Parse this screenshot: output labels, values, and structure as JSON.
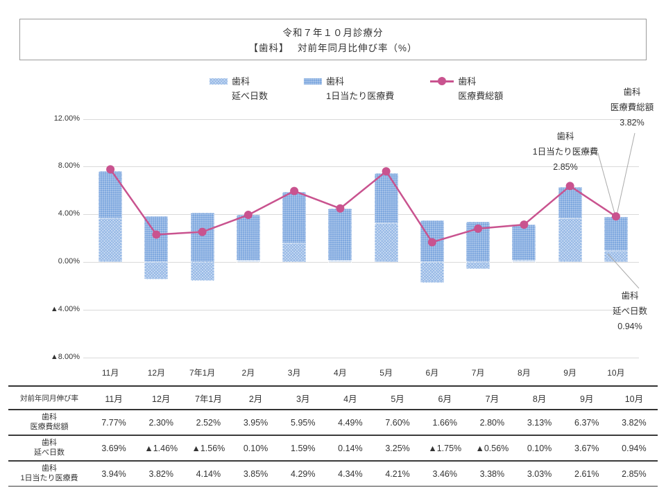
{
  "title": {
    "line1": "令和７年１０月診療分",
    "line2": "【歯科】　 対前年同月比伸び率（%）"
  },
  "legend": [
    {
      "name": "歯科",
      "sub": "延べ日数",
      "swatch": "hatch-light"
    },
    {
      "name": "歯科",
      "sub": "1日当たり医療費",
      "swatch": "hatch-dense"
    },
    {
      "name": "歯科",
      "sub": "医療費総額",
      "swatch": "line-marker"
    }
  ],
  "colors": {
    "bar_days": "#cddef3",
    "bar_days_pattern": "#93b6e5",
    "bar_perday": "#7fa8df",
    "line_total": "#c9538f",
    "gridline": "#d9d9d9",
    "callout": "#aaaaaa",
    "table_border": "#333333",
    "text": "#333333"
  },
  "chart_data": {
    "type": "bar",
    "subtype": "stacked bars with line overlay",
    "categories": [
      "11月",
      "12月",
      "7年1月",
      "2月",
      "3月",
      "4月",
      "5月",
      "6月",
      "7月",
      "8月",
      "9月",
      "10月"
    ],
    "series": [
      {
        "name": "歯科 延べ日数",
        "type": "bar",
        "values": [
          3.69,
          -1.46,
          -1.56,
          0.1,
          1.59,
          0.14,
          3.25,
          -1.75,
          -0.56,
          0.1,
          3.67,
          0.94
        ]
      },
      {
        "name": "歯科 1日当たり医療費",
        "type": "bar",
        "values": [
          3.94,
          3.82,
          4.14,
          3.85,
          4.29,
          4.34,
          4.21,
          3.46,
          3.38,
          3.03,
          2.61,
          2.85
        ]
      },
      {
        "name": "歯科 医療費総額",
        "type": "line",
        "values": [
          7.77,
          2.3,
          2.52,
          3.95,
          5.95,
          4.49,
          7.6,
          1.66,
          2.8,
          3.13,
          6.37,
          3.82
        ]
      }
    ],
    "ylim": [
      -8,
      12
    ],
    "grid": true,
    "legend_position": "top-center",
    "y_ticks": [
      {
        "value": 12,
        "label": "12.00%"
      },
      {
        "value": 8,
        "label": "8.00%"
      },
      {
        "value": 4,
        "label": "4.00%"
      },
      {
        "value": 0,
        "label": "0.00%"
      },
      {
        "value": -4,
        "label": "▲4.00%"
      },
      {
        "value": -8,
        "label": "▲8.00%"
      }
    ]
  },
  "annotations": [
    {
      "id": "total",
      "lines": [
        "歯科",
        "医療費総額",
        "3.82%"
      ]
    },
    {
      "id": "perday",
      "lines": [
        "歯科",
        "1日当たり医療費",
        "2.85%"
      ]
    },
    {
      "id": "days",
      "lines": [
        "歯科",
        "延べ日数",
        "0.94%"
      ]
    }
  ],
  "table": {
    "corner_label": "対前年同月伸び率",
    "months": [
      "11月",
      "12月",
      "7年1月",
      "2月",
      "3月",
      "4月",
      "5月",
      "6月",
      "7月",
      "8月",
      "9月",
      "10月"
    ],
    "rows": [
      {
        "label_lines": [
          "歯科",
          "医療費総額"
        ],
        "values": [
          "7.77%",
          "2.30%",
          "2.52%",
          "3.95%",
          "5.95%",
          "4.49%",
          "7.60%",
          "1.66%",
          "2.80%",
          "3.13%",
          "6.37%",
          "3.82%"
        ]
      },
      {
        "label_lines": [
          "歯科",
          "延べ日数"
        ],
        "values": [
          "3.69%",
          "▲1.46%",
          "▲1.56%",
          "0.10%",
          "1.59%",
          "0.14%",
          "3.25%",
          "▲1.75%",
          "▲0.56%",
          "0.10%",
          "3.67%",
          "0.94%"
        ]
      },
      {
        "label_lines": [
          "歯科",
          "1日当たり医療費"
        ],
        "values": [
          "3.94%",
          "3.82%",
          "4.14%",
          "3.85%",
          "4.29%",
          "4.34%",
          "4.21%",
          "3.46%",
          "3.38%",
          "3.03%",
          "2.61%",
          "2.85%"
        ]
      }
    ]
  }
}
